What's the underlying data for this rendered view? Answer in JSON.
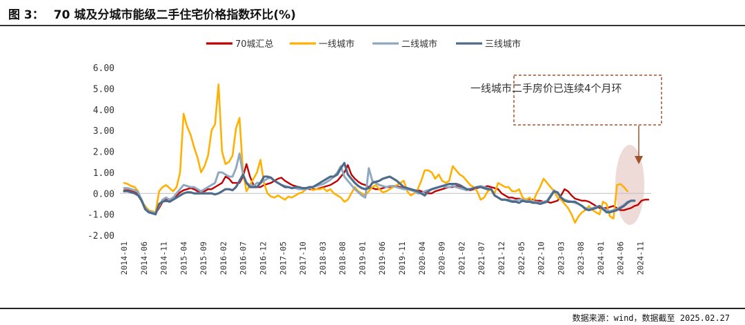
{
  "header": {
    "figure_label": "图 3：",
    "title": "70 城及分城市能级二手住宅价格指数环比(%)"
  },
  "footer": {
    "source": "数据来源：wind，数据截至 2025.02.27"
  },
  "colors": {
    "series_70": "#C00000",
    "series_t1": "#FFB000",
    "series_t2": "#8EA9C1",
    "series_t3": "#4F6B8A",
    "annotation_border": "#A0522D",
    "highlight": "#E8CFCB"
  },
  "chart_data": {
    "type": "line",
    "title": "70 城及分城市能级二手住宅价格指数环比(%)",
    "xlabel": "",
    "ylabel": "",
    "ylim": [
      -2.0,
      6.0
    ],
    "yticks": [
      "6.00",
      "5.00",
      "4.00",
      "3.00",
      "2.00",
      "1.00",
      "0.00",
      "-1.00",
      "-2.00"
    ],
    "x_tick_labels": [
      "2014-01",
      "2014-06",
      "2014-11",
      "2015-04",
      "2015-09",
      "2016-02",
      "2016-07",
      "2016-12",
      "2017-05",
      "2017-10",
      "2018-03",
      "2018-08",
      "2019-01",
      "2019-06",
      "2019-11",
      "2020-04",
      "2020-09",
      "2021-02",
      "2021-07",
      "2021-12",
      "2022-05",
      "2022-10",
      "2023-03",
      "2023-08",
      "2024-01",
      "2024-06",
      "2024-11"
    ],
    "x_start": "2014-01",
    "x_end": "2025-01",
    "grid": false,
    "legend_position": "top",
    "annotation": "一线城市二手房价已连续4个月环",
    "series": [
      {
        "name": "70城汇总",
        "color": "#C00000",
        "values": [
          0.15,
          0.15,
          0.1,
          0.05,
          0.0,
          -0.3,
          -0.7,
          -0.85,
          -0.9,
          -0.95,
          -0.7,
          -0.4,
          -0.3,
          -0.4,
          -0.3,
          -0.1,
          0.05,
          0.15,
          0.2,
          0.25,
          0.2,
          0.1,
          0.1,
          0.1,
          0.2,
          0.2,
          0.3,
          0.4,
          0.5,
          0.8,
          0.7,
          0.5,
          0.5,
          0.5,
          0.8,
          1.4,
          0.8,
          0.4,
          0.3,
          0.3,
          0.4,
          0.45,
          0.5,
          0.6,
          0.7,
          0.75,
          0.6,
          0.5,
          0.4,
          0.35,
          0.3,
          0.25,
          0.25,
          0.2,
          0.2,
          0.2,
          0.25,
          0.3,
          0.35,
          0.4,
          0.5,
          0.6,
          0.8,
          1.0,
          1.35,
          0.9,
          0.7,
          0.55,
          0.45,
          0.4,
          0.3,
          0.25,
          0.2,
          0.2,
          0.25,
          0.3,
          0.3,
          0.35,
          0.35,
          0.3,
          0.25,
          0.2,
          0.2,
          0.15,
          0.15,
          0.1,
          0.05,
          0.0,
          0.0,
          0.1,
          0.15,
          0.2,
          0.25,
          0.3,
          0.3,
          0.35,
          0.3,
          0.25,
          0.2,
          0.15,
          0.2,
          0.25,
          0.3,
          0.3,
          0.35,
          0.3,
          0.25,
          0.2,
          0.0,
          -0.1,
          -0.2,
          -0.2,
          -0.25,
          -0.25,
          -0.3,
          -0.35,
          -0.3,
          -0.3,
          -0.35,
          -0.35,
          -0.4,
          -0.4,
          -0.45,
          -0.4,
          -0.35,
          -0.1,
          0.2,
          0.1,
          -0.1,
          -0.25,
          -0.3,
          -0.35,
          -0.35,
          -0.4,
          -0.5,
          -0.6,
          -0.7,
          -0.7,
          -0.7,
          -0.65,
          -0.6,
          -0.7,
          -0.8,
          -0.8,
          -0.75,
          -0.7,
          -0.6,
          -0.55,
          -0.35,
          -0.3,
          -0.3
        ]
      },
      {
        "name": "一线城市",
        "color": "#FFB000",
        "values": [
          0.5,
          0.45,
          0.35,
          0.3,
          0.1,
          -0.4,
          -0.6,
          -0.8,
          -0.85,
          -0.9,
          0.1,
          0.3,
          0.4,
          0.25,
          0.1,
          0.3,
          1.0,
          3.8,
          3.2,
          2.8,
          2.2,
          1.7,
          1.0,
          1.3,
          1.8,
          3.0,
          3.3,
          5.2,
          2.0,
          1.4,
          1.5,
          1.8,
          3.1,
          3.6,
          1.0,
          0.1,
          0.4,
          0.7,
          1.0,
          1.6,
          0.5,
          0.0,
          -0.15,
          -0.2,
          -0.1,
          -0.2,
          -0.3,
          -0.15,
          -0.2,
          -0.1,
          0.0,
          0.05,
          0.2,
          0.3,
          0.15,
          0.2,
          0.2,
          0.25,
          0.1,
          0.2,
          0.0,
          -0.1,
          -0.2,
          -0.4,
          -0.3,
          0.0,
          0.3,
          0.1,
          0.0,
          -0.1,
          0.1,
          0.3,
          0.4,
          0.2,
          0.05,
          0.1,
          0.2,
          0.3,
          0.4,
          0.5,
          0.6,
          0.1,
          -0.1,
          0.0,
          0.2,
          0.6,
          1.1,
          1.1,
          1.0,
          0.7,
          0.9,
          0.6,
          0.5,
          0.6,
          1.3,
          1.1,
          0.9,
          0.8,
          0.6,
          0.4,
          0.3,
          0.1,
          -0.3,
          -0.2,
          0.1,
          0.2,
          0.0,
          0.5,
          0.4,
          0.3,
          0.3,
          0.1,
          0.1,
          0.2,
          -0.2,
          -0.3,
          -0.2,
          -0.4,
          0.0,
          0.3,
          0.7,
          0.5,
          0.3,
          0.1,
          -0.2,
          -0.3,
          -0.5,
          -0.7,
          -1.0,
          -1.4,
          -1.1,
          -0.9,
          -0.8,
          -0.6,
          -0.8,
          -0.9,
          -1.0,
          -0.4,
          -0.5,
          -1.1,
          -1.2,
          0.4,
          0.45,
          0.3,
          0.1
        ]
      },
      {
        "name": "二线城市",
        "color": "#8EA9C1",
        "values": [
          0.25,
          0.25,
          0.2,
          0.15,
          0.05,
          -0.3,
          -0.7,
          -0.85,
          -0.9,
          -0.95,
          -0.6,
          -0.3,
          -0.2,
          -0.3,
          -0.2,
          0.0,
          0.2,
          0.4,
          0.35,
          0.3,
          0.3,
          0.2,
          0.1,
          0.2,
          0.3,
          0.4,
          0.5,
          1.0,
          1.0,
          0.9,
          0.8,
          0.8,
          1.2,
          1.9,
          0.9,
          0.5,
          0.4,
          0.35,
          0.5,
          0.5,
          0.6,
          0.7,
          0.75,
          0.6,
          0.5,
          0.4,
          0.35,
          0.3,
          0.25,
          0.25,
          0.2,
          0.2,
          0.2,
          0.25,
          0.3,
          0.35,
          0.4,
          0.45,
          0.55,
          0.65,
          0.8,
          1.0,
          1.3,
          0.8,
          0.6,
          0.4,
          0.2,
          0.05,
          -0.1,
          -0.2,
          1.2,
          0.6,
          0.5,
          0.4,
          0.35,
          0.3,
          0.35,
          0.35,
          0.3,
          0.25,
          0.2,
          0.2,
          0.15,
          0.1,
          0.0,
          0.0,
          0.1,
          0.15,
          0.2,
          0.25,
          0.3,
          0.35,
          0.3,
          0.3,
          0.35,
          0.3,
          0.25,
          0.2,
          0.15,
          0.2,
          0.25,
          0.3,
          0.35,
          0.3,
          0.25,
          0.2,
          -0.1,
          -0.2,
          -0.3,
          -0.3,
          -0.3,
          -0.35,
          -0.35,
          -0.3,
          -0.3,
          -0.35,
          -0.35,
          -0.4,
          -0.4,
          -0.45,
          -0.4,
          -0.35,
          -0.1,
          0.15,
          0.0,
          -0.2,
          -0.3,
          -0.35,
          -0.4,
          -0.45,
          -0.5,
          -0.6,
          -0.7,
          -0.75,
          -0.7,
          -0.65,
          -0.6,
          -0.7,
          -0.8,
          -0.85,
          -0.8,
          -0.75,
          -0.65,
          -0.55,
          -0.4,
          -0.35,
          -0.35
        ]
      },
      {
        "name": "三线城市",
        "color": "#4F6B8A",
        "values": [
          0.1,
          0.1,
          0.05,
          0.0,
          -0.1,
          -0.35,
          -0.75,
          -0.9,
          -0.95,
          -1.0,
          -0.5,
          -0.4,
          -0.35,
          -0.4,
          -0.3,
          -0.2,
          -0.1,
          0.0,
          0.05,
          0.05,
          0.0,
          0.0,
          0.0,
          0.0,
          0.0,
          0.0,
          -0.05,
          0.0,
          0.1,
          0.2,
          0.2,
          0.15,
          0.3,
          0.6,
          0.9,
          0.5,
          0.3,
          0.3,
          0.3,
          0.5,
          0.8,
          0.8,
          0.75,
          0.6,
          0.5,
          0.4,
          0.3,
          0.3,
          0.25,
          0.3,
          0.3,
          0.25,
          0.25,
          0.3,
          0.3,
          0.4,
          0.5,
          0.6,
          0.7,
          0.8,
          0.8,
          0.9,
          1.2,
          1.45,
          0.9,
          0.7,
          0.5,
          0.35,
          0.25,
          0.2,
          0.25,
          0.5,
          0.55,
          0.6,
          0.7,
          0.75,
          0.8,
          0.7,
          0.6,
          0.45,
          0.3,
          0.25,
          0.2,
          0.15,
          0.1,
          0.0,
          -0.1,
          0.1,
          0.2,
          0.25,
          0.3,
          0.35,
          0.4,
          0.45,
          0.45,
          0.45,
          0.4,
          0.3,
          0.2,
          0.2,
          0.25,
          0.3,
          0.3,
          0.25,
          0.2,
          0.2,
          -0.1,
          -0.2,
          -0.3,
          -0.3,
          -0.35,
          -0.4,
          -0.4,
          -0.45,
          -0.35,
          -0.4,
          -0.4,
          -0.45,
          -0.45,
          -0.5,
          -0.45,
          -0.4,
          -0.15,
          0.1,
          0.05,
          -0.2,
          -0.35,
          -0.4,
          -0.4,
          -0.4,
          -0.5,
          -0.6,
          -0.75,
          -0.8,
          -0.75,
          -0.7,
          -0.6,
          -0.75,
          -0.9,
          -0.9,
          -0.85,
          -0.8,
          -0.7,
          -0.6,
          -0.45,
          -0.35,
          -0.35
        ]
      }
    ]
  }
}
